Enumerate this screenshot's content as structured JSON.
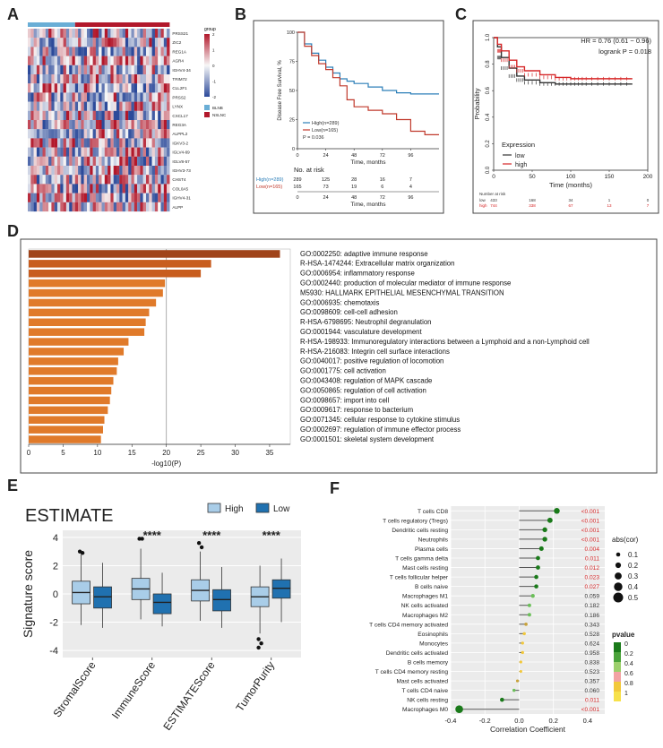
{
  "panels": {
    "A": {
      "letter": "A",
      "legend_group": "group",
      "legend_items": [
        "BLNB",
        "NSLNC"
      ],
      "colorbar_ticks": [
        "2",
        "1",
        "0",
        "-1",
        "-2"
      ],
      "genes": [
        "PRSS21",
        "ZIC2",
        "REG1A",
        "AGR4",
        "IGHV4-34",
        "TRIM72",
        "CLL2F1",
        "PRSS2",
        "LYNX",
        "CXCL17",
        "REG3A",
        "ALPPL2",
        "IGKV3-2",
        "IGLV4-69",
        "IGLV8-57",
        "IGHV3-73",
        "CHST4",
        "COL0A5",
        "IGHV4-31",
        "ALPP"
      ],
      "colors": {
        "high": "#b2182b",
        "low": "#2c4a9a",
        "mid": "#f7f7f7",
        "group1": "#6aaed6",
        "group2": "#b2182b"
      }
    },
    "B": {
      "letter": "B",
      "risk_title": "No. at risk",
      "risk_rows": [
        {
          "label": "High(n=289)",
          "values": [
            "289",
            "125",
            "28",
            "16",
            "7"
          ],
          "color": "#2c7fb8"
        },
        {
          "label": "Low(n=165)",
          "values": [
            "165",
            "73",
            "19",
            "6",
            "4"
          ],
          "color": "#c0392b"
        }
      ],
      "bottom_ticks": [
        "0",
        "24",
        "48",
        "72",
        "96"
      ],
      "bottom_label": "Time, months",
      "legend_high": "High(n=289)",
      "legend_low": "Low(n=165)",
      "p_value": "P = 0.036"
    },
    "C": {
      "letter": "C",
      "hr": "HR = 0.76 (0.61 − 0.96)",
      "logrank": "logrank P = 0.018",
      "legend_title": "Expression",
      "legend_low": "low",
      "legend_high": "high",
      "risk_title": "Number at risk",
      "risk_rows": [
        {
          "label": "low",
          "values": [
            "433",
            "168",
            "34",
            "1",
            "0"
          ],
          "color": "#333333"
        },
        {
          "label": "high",
          "values": [
            "744",
            "338",
            "67",
            "13",
            "7"
          ],
          "color": "#d62728"
        }
      ]
    },
    "D": {
      "letter": "D",
      "colors": {
        "bar_dark": "#a0441a",
        "bar_mid": "#c85d1e",
        "bar_light": "#e07a2a"
      }
    },
    "E": {
      "letter": "E",
      "title": "ESTIMATE",
      "legend_high": "High",
      "legend_low": "Low",
      "significance": [
        "****",
        "****",
        "****"
      ],
      "colors": {
        "high": "#a9cde8",
        "low": "#2071b0"
      }
    },
    "F": {
      "letter": "F",
      "size_legend_title": "abs(cor)",
      "size_legend_values": [
        "0.1",
        "0.2",
        "0.3",
        "0.4",
        "0.5"
      ],
      "color_legend_title": "pvalue",
      "color_legend_values": [
        "0",
        "0.2",
        "0.4",
        "0.6",
        "0.8",
        "1"
      ]
    }
  },
  "chart_data": [
    {
      "type": "heatmap",
      "panel": "A",
      "rows": [
        "PRSS21",
        "ZIC2",
        "REG1A",
        "AGR4",
        "IGHV4-34",
        "TRIM72",
        "CLL2F1",
        "PRSS2",
        "LYNX",
        "CXCL17",
        "REG3A",
        "ALPPL2",
        "IGKV3-2",
        "IGLV4-69",
        "IGLV8-57",
        "IGHV3-73",
        "CHST4",
        "COL0A5",
        "IGHV4-31",
        "ALPP"
      ],
      "legend": [
        "BLNB",
        "NSLNC"
      ],
      "value_range": [
        -2,
        2
      ]
    },
    {
      "type": "line",
      "panel": "B",
      "xlabel": "Time, months",
      "ylabel": "Disease Free Survival, %",
      "x_ticks": [
        0,
        24,
        48,
        72,
        96
      ],
      "y_ticks": [
        0,
        25,
        50,
        75,
        100
      ],
      "xlim": [
        0,
        120
      ],
      "ylim": [
        0,
        100
      ],
      "series": [
        {
          "name": "High(n=289)",
          "color": "#2c7fb8",
          "x": [
            0,
            6,
            12,
            18,
            24,
            30,
            36,
            42,
            48,
            60,
            72,
            84,
            96,
            108,
            120
          ],
          "y": [
            100,
            90,
            82,
            76,
            70,
            65,
            60,
            58,
            56,
            53,
            50,
            48,
            47,
            47,
            47
          ]
        },
        {
          "name": "Low(n=165)",
          "color": "#c0392b",
          "x": [
            0,
            6,
            12,
            18,
            24,
            30,
            36,
            42,
            48,
            60,
            72,
            84,
            96,
            108,
            120
          ],
          "y": [
            100,
            88,
            80,
            73,
            68,
            61,
            54,
            42,
            36,
            33,
            30,
            25,
            15,
            12,
            12
          ]
        }
      ]
    },
    {
      "type": "line",
      "panel": "C",
      "xlabel": "Time (months)",
      "ylabel": "Probability",
      "x_ticks": [
        0,
        50,
        100,
        150,
        200
      ],
      "y_ticks": [
        0.0,
        0.2,
        0.4,
        0.6,
        0.8,
        1.0
      ],
      "xlim": [
        0,
        200
      ],
      "ylim": [
        0,
        1
      ],
      "series": [
        {
          "name": "low",
          "color": "#333333",
          "x": [
            0,
            5,
            10,
            20,
            30,
            40,
            60,
            80,
            100,
            120,
            150,
            180
          ],
          "y": [
            1.0,
            0.93,
            0.85,
            0.77,
            0.71,
            0.68,
            0.66,
            0.65,
            0.65,
            0.65,
            0.65,
            0.65
          ]
        },
        {
          "name": "high",
          "color": "#d62728",
          "x": [
            0,
            5,
            10,
            20,
            30,
            40,
            60,
            80,
            100,
            120,
            150,
            180
          ],
          "y": [
            1.0,
            0.95,
            0.9,
            0.83,
            0.78,
            0.75,
            0.72,
            0.7,
            0.69,
            0.69,
            0.69,
            0.69
          ]
        }
      ]
    },
    {
      "type": "bar",
      "panel": "D",
      "orientation": "horizontal",
      "xlabel": "-log10(P)",
      "x_ticks": [
        0,
        5,
        10,
        15,
        20,
        25,
        30,
        35
      ],
      "xlim": [
        0,
        38
      ],
      "reference_line": 20,
      "categories": [
        "GO:0002250: adaptive immune response",
        "R-HSA-1474244: Extracellular matrix organization",
        "GO:0006954: inflammatory response",
        "GO:0002440: production of molecular mediator of immune response",
        "M5930: HALLMARK EPITHELIAL MESENCHYMAL TRANSITION",
        "GO:0006935: chemotaxis",
        "GO:0098609: cell-cell adhesion",
        "R-HSA-6798695: Neutrophil degranulation",
        "GO:0001944: vasculature development",
        "R-HSA-198933: Immunoregulatory interactions between a Lymphoid and a non-Lymphoid cell",
        "R-HSA-216083: Integrin cell surface interactions",
        "GO:0040017: positive regulation of locomotion",
        "GO:0001775: cell activation",
        "GO:0043408: regulation of MAPK cascade",
        "GO:0050865: regulation of cell activation",
        "GO:0098657: import into cell",
        "GO:0009617: response to bacterium",
        "GO:0071345: cellular response to cytokine stimulus",
        "GO:0002697: regulation of immune effector process",
        "GO:0001501: skeletal system development"
      ],
      "values": [
        36.5,
        26.5,
        25,
        19.8,
        19.5,
        18.5,
        17.5,
        17,
        16.8,
        14.5,
        13.8,
        13,
        12.8,
        12.3,
        12,
        11.8,
        11.5,
        11,
        10.8,
        10.5
      ]
    },
    {
      "type": "box",
      "panel": "E",
      "ylabel": "Signature score",
      "y_ticks": [
        -4,
        -2,
        0,
        2,
        4
      ],
      "ylim": [
        -4.5,
        4.5
      ],
      "categories": [
        "StromalScore",
        "ImmuneScore",
        "ESTIMATEScore",
        "TumorPurity"
      ],
      "series": [
        {
          "name": "High",
          "boxes": [
            {
              "min": -2.2,
              "q1": -0.7,
              "median": 0.1,
              "q3": 0.9,
              "max": 2.8,
              "outliers": [
                3.0,
                2.9
              ]
            },
            {
              "min": -1.8,
              "q1": -0.4,
              "median": 0.35,
              "q3": 1.1,
              "max": 3.2,
              "outliers": [
                3.9,
                3.9
              ]
            },
            {
              "min": -1.9,
              "q1": -0.5,
              "median": 0.25,
              "q3": 1.0,
              "max": 3.0,
              "outliers": [
                3.6,
                3.3
              ]
            },
            {
              "min": -2.8,
              "q1": -0.9,
              "median": -0.2,
              "q3": 0.5,
              "max": 2.0,
              "outliers": [
                -3.2,
                -3.5,
                -3.8
              ]
            }
          ]
        },
        {
          "name": "Low",
          "boxes": [
            {
              "min": -2.4,
              "q1": -1.0,
              "median": -0.2,
              "q3": 0.5,
              "max": 2.2,
              "outliers": []
            },
            {
              "min": -2.3,
              "q1": -1.4,
              "median": -0.6,
              "q3": 0.0,
              "max": 1.5,
              "outliers": []
            },
            {
              "min": -2.4,
              "q1": -1.2,
              "median": -0.4,
              "q3": 0.3,
              "max": 1.9,
              "outliers": []
            },
            {
              "min": -2.0,
              "q1": -0.3,
              "median": 0.4,
              "q3": 1.0,
              "max": 2.5,
              "outliers": []
            }
          ]
        }
      ]
    },
    {
      "type": "scatter",
      "panel": "F",
      "subtype": "lollipop",
      "xlabel": "Correlation Coefficient",
      "x_ticks": [
        -0.4,
        -0.2,
        0.0,
        0.2,
        0.4
      ],
      "xlim": [
        -0.4,
        0.5
      ],
      "categories": [
        "T cells CD8",
        "T cells regulatory (Tregs)",
        "Dendritic cells resting",
        "Neutrophils",
        "Plasma cells",
        "T cells gamma delta",
        "Mast cells resting",
        "T cells follicular helper",
        "B cells naive",
        "Macrophages M1",
        "NK cells activated",
        "Macrophages M2",
        "T cells CD4 memory activated",
        "Eosinophils",
        "Monocytes",
        "Dendritic cells activated",
        "B cells memory",
        "T cells CD4 memory resting",
        "Mast cells activated",
        "T cells CD4 naive",
        "NK cells resting",
        "Macrophages M0"
      ],
      "values": [
        0.22,
        0.18,
        0.15,
        0.15,
        0.13,
        0.11,
        0.11,
        0.1,
        0.1,
        0.08,
        0.06,
        0.06,
        0.04,
        0.03,
        0.02,
        0.02,
        0.01,
        0.01,
        -0.01,
        -0.03,
        -0.1,
        -0.35
      ],
      "pvalues": [
        "<0.001",
        "<0.001",
        "<0.001",
        "<0.001",
        "0.004",
        "0.011",
        "0.012",
        "0.023",
        "0.027",
        "0.059",
        "0.182",
        "0.186",
        "0.343",
        "0.528",
        "0.624",
        "0.958",
        "0.838",
        "0.523",
        "0.357",
        "0.060",
        "0.011",
        "<0.001"
      ]
    }
  ]
}
